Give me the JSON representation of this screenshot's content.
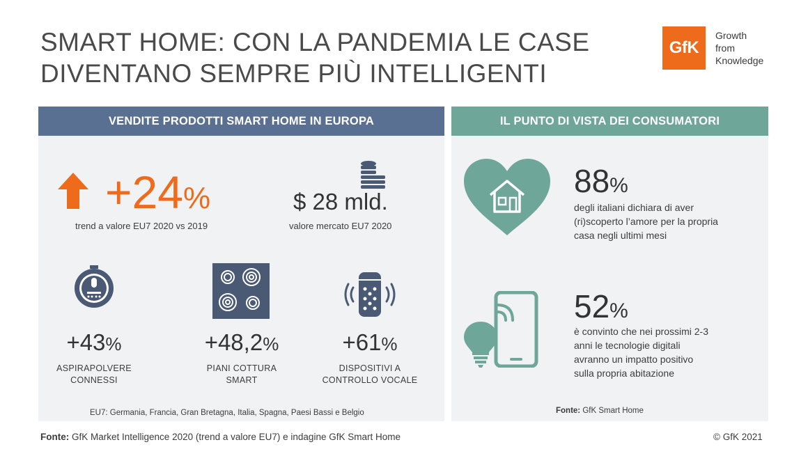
{
  "title": {
    "line1": "SMART HOME: CON LA PANDEMIA LE CASE",
    "line2": "DIVENTANO SEMPRE PIÙ INTELLIGENTI"
  },
  "logo": {
    "text": "GfK",
    "tagline": [
      "Growth",
      "from",
      "Knowledge"
    ],
    "color": "#ee6b1b"
  },
  "left_panel": {
    "header": "VENDITE PRODOTTI SMART HOME IN EUROPA",
    "header_color": "#5a7093",
    "trend": {
      "value": "+24",
      "unit": "%",
      "caption": "trend a valore EU7 2020 vs 2019",
      "icon": "arrow-up-icon"
    },
    "market": {
      "value": "$ 28 mld.",
      "caption": "valore mercato EU7 2020",
      "icon": "coins-icon"
    },
    "stats": [
      {
        "value": "+43",
        "unit": "%",
        "label": [
          "ASPIRAPOLVERE",
          "CONNESSI"
        ],
        "icon": "robot-vacuum-icon"
      },
      {
        "value": "+48,2",
        "unit": "%",
        "label": [
          "PIANI COTTURA",
          "SMART"
        ],
        "icon": "cooktop-icon"
      },
      {
        "value": "+61",
        "unit": "%",
        "label": [
          "DISPOSITIVI A",
          "CONTROLLO VOCALE"
        ],
        "icon": "smart-speaker-icon"
      }
    ],
    "note": "EU7: Germania, Francia, Gran Bretagna, Italia, Spagna, Paesi Bassi e Belgio"
  },
  "right_panel": {
    "header": "IL PUNTO DI VISTA DEI CONSUMATORI",
    "header_color": "#6ea699",
    "items": [
      {
        "value": "88",
        "unit": "%",
        "desc": [
          "degli italiani dichiara di aver",
          "(ri)scoperto l’amore per la propria",
          "casa negli ultimi mesi"
        ],
        "icon": "heart-house-icon"
      },
      {
        "value": "52",
        "unit": "%",
        "desc": [
          "è convinto che nei prossimi 2-3",
          "anni le tecnologie digitali",
          "avranno un impatto positivo",
          "sulla propria abitazione"
        ],
        "icon": "smartphone-bulb-icon"
      }
    ],
    "source_label": "Fonte:",
    "source_text": " GfK Smart Home"
  },
  "footer": {
    "label": "Fonte:",
    "text": " GfK Market Intelligence 2020 (trend a valore EU7) e indagine GfK Smart Home",
    "copyright": "© GfK 2021"
  }
}
